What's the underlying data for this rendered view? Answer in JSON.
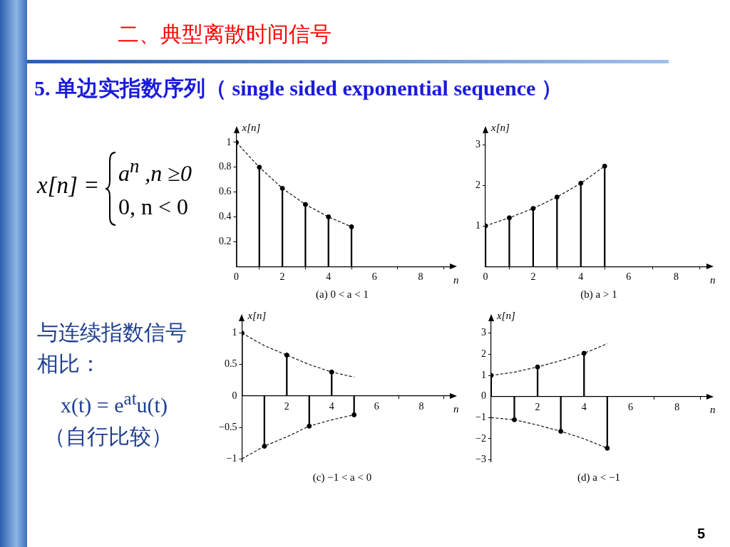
{
  "chart_data": [
    {
      "type": "other",
      "title": "二、典型离散时间信号",
      "subtitle": "5.  单边实指数序列（ single sided exponential sequence ）",
      "annotations": [
        "x[n] =",
        "a$^{n}$ ,n ≥0",
        "0,  n < 0",
        "与连续指数信号相比：",
        "x(t) = e$^{at}$u(t)",
        "（自行比较）",
        "5"
      ]
    },
    {
      "type": "lollipop",
      "xlabel": "n",
      "ylabel": "x[n]",
      "annotations": [
        "(a)  0 < a < 1"
      ],
      "x": [
        0,
        1,
        2,
        3,
        4,
        5
      ],
      "xlim": [
        0,
        9.3
      ],
      "xticks": [
        0,
        2,
        4,
        6,
        8
      ],
      "ylim": [
        0,
        1.08
      ],
      "yticks": [
        0.2,
        0.4,
        0.6,
        0.8,
        1
      ],
      "series": [
        {
          "type": "lollipop",
          "marker": "circle",
          "color": "#000000",
          "values": [
            1,
            0.8,
            0.63,
            0.5,
            0.4,
            0.32
          ]
        },
        {
          "type": "line",
          "line_style": "dashed",
          "color": "#000000",
          "values": [
            1,
            0.8,
            0.63,
            0.5,
            0.4,
            0.32
          ]
        }
      ]
    },
    {
      "type": "lollipop",
      "xlabel": "n",
      "ylabel": "x[n]",
      "annotations": [
        "(b)  a > 1"
      ],
      "x": [
        0,
        1,
        2,
        3,
        4,
        5
      ],
      "xlim": [
        0,
        9.3
      ],
      "xticks": [
        0,
        2,
        4,
        6,
        8
      ],
      "ylim": [
        0,
        3.3
      ],
      "yticks": [
        1,
        2,
        3
      ],
      "series": [
        {
          "type": "lollipop",
          "marker": "circle",
          "color": "#000000",
          "values": [
            1,
            1.2,
            1.43,
            1.71,
            2.05,
            2.47
          ]
        },
        {
          "type": "line",
          "line_style": "dashed",
          "color": "#000000",
          "values": [
            1,
            1.2,
            1.43,
            1.71,
            2.05,
            2.47
          ]
        }
      ]
    },
    {
      "type": "lollipop",
      "xlabel": "n",
      "ylabel": "x[n]",
      "annotations": [
        "(c)  −1 < a < 0"
      ],
      "x": [
        0,
        1,
        2,
        3,
        4,
        5
      ],
      "xlim": [
        0,
        9.3
      ],
      "xticks": [
        2,
        4,
        6,
        8
      ],
      "ylim": [
        -1.05,
        1.2
      ],
      "yticks": [
        -1,
        -0.5,
        0,
        0.5,
        1
      ],
      "series": [
        {
          "type": "lollipop",
          "marker": "circle",
          "color": "#000000",
          "values": [
            1,
            -0.8,
            0.65,
            -0.48,
            0.38,
            -0.3
          ]
        },
        {
          "type": "line",
          "line_style": "dashed",
          "color": "#000000",
          "values": [
            1,
            0.8,
            0.65,
            0.5,
            0.38,
            0.3
          ]
        },
        {
          "type": "line",
          "line_style": "dashed",
          "color": "#000000",
          "values": [
            -1,
            -0.8,
            -0.65,
            -0.48,
            -0.38,
            -0.3
          ]
        }
      ]
    },
    {
      "type": "lollipop",
      "xlabel": "n",
      "ylabel": "x[n]",
      "annotations": [
        "(d)  a < −1"
      ],
      "x": [
        0,
        1,
        2,
        3,
        4,
        5
      ],
      "xlim": [
        0,
        9.3
      ],
      "xticks": [
        2,
        4,
        6,
        8
      ],
      "ylim": [
        -3.1,
        3.6
      ],
      "yticks": [
        -3,
        -2,
        -1,
        0,
        1,
        2,
        3
      ],
      "series": [
        {
          "type": "lollipop",
          "marker": "circle",
          "color": "#000000",
          "values": [
            1,
            -1.1,
            1.4,
            -1.65,
            2.05,
            -2.45
          ]
        },
        {
          "type": "line",
          "line_style": "dashed",
          "color": "#000000",
          "values": [
            1,
            1.15,
            1.4,
            1.7,
            2.05,
            2.5
          ]
        },
        {
          "type": "line",
          "line_style": "dashed",
          "color": "#000000",
          "values": [
            -1,
            -1.1,
            -1.35,
            -1.65,
            -2,
            -2.45
          ]
        }
      ]
    }
  ]
}
